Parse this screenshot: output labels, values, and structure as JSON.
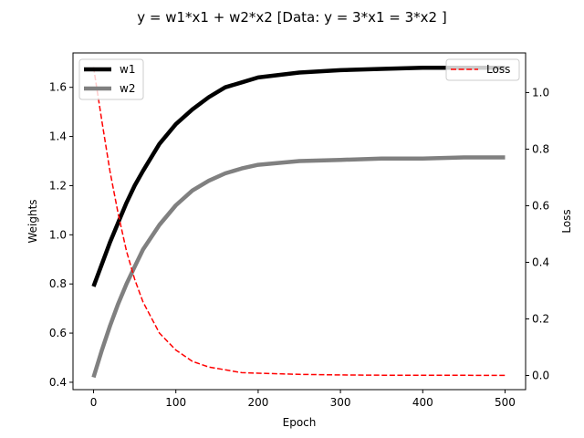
{
  "chart_data": {
    "type": "line",
    "title": "y = w1*x1 + w2*x2 [Data: y = 3*x1 = 3*x2 ]",
    "xlabel": "Epoch",
    "ylabel_left": "Weights",
    "ylabel_right": "Loss",
    "xlim": [
      -25,
      525
    ],
    "ylim_left": [
      0.37,
      1.74
    ],
    "ylim_right": [
      -0.05,
      1.14
    ],
    "x_ticks": [
      0,
      100,
      200,
      300,
      400,
      500
    ],
    "y_left_ticks": [
      0.4,
      0.6,
      0.8,
      1.0,
      1.2,
      1.4,
      1.6
    ],
    "y_right_ticks": [
      0.0,
      0.2,
      0.4,
      0.6,
      0.8,
      1.0
    ],
    "x_tick_labels": [
      "0",
      "100",
      "200",
      "300",
      "400",
      "500"
    ],
    "y_left_tick_labels": [
      "0.4",
      "0.6",
      "0.8",
      "1.0",
      "1.2",
      "1.4",
      "1.6"
    ],
    "y_right_tick_labels": [
      "0.0",
      "0.2",
      "0.4",
      "0.6",
      "0.8",
      "1.0"
    ],
    "grid": false,
    "legend_left_placement": "top-left",
    "legend_right_placement": "top-right",
    "x": [
      0,
      10,
      20,
      30,
      40,
      50,
      60,
      80,
      100,
      120,
      140,
      160,
      180,
      200,
      250,
      300,
      350,
      400,
      450,
      500
    ],
    "series": [
      {
        "name": "w1",
        "axis": "left",
        "style": "solid",
        "color": "#000000",
        "values": [
          0.79,
          0.88,
          0.97,
          1.05,
          1.13,
          1.2,
          1.26,
          1.37,
          1.45,
          1.51,
          1.56,
          1.6,
          1.62,
          1.64,
          1.66,
          1.67,
          1.675,
          1.68,
          1.68,
          1.68
        ]
      },
      {
        "name": "w2",
        "axis": "left",
        "style": "solid",
        "color": "#808080",
        "values": [
          0.42,
          0.53,
          0.63,
          0.72,
          0.8,
          0.87,
          0.94,
          1.04,
          1.12,
          1.18,
          1.22,
          1.25,
          1.27,
          1.285,
          1.3,
          1.305,
          1.31,
          1.31,
          1.315,
          1.315
        ]
      },
      {
        "name": "Loss",
        "axis": "right",
        "style": "dashed",
        "color": "#ff0000",
        "values": [
          1.09,
          0.9,
          0.72,
          0.57,
          0.44,
          0.34,
          0.26,
          0.15,
          0.09,
          0.05,
          0.03,
          0.02,
          0.01,
          0.008,
          0.004,
          0.002,
          0.001,
          0.001,
          0.0005,
          0.0003
        ]
      }
    ]
  }
}
